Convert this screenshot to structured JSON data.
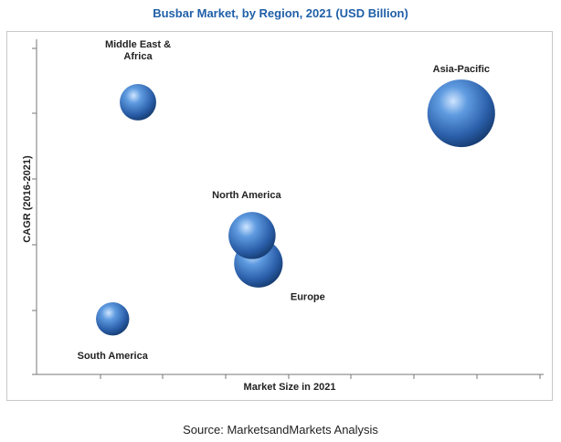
{
  "chart_data": {
    "type": "scatter",
    "subtype": "bubble",
    "title": "Busbar Market, by Region, 2021 (USD Billion)",
    "xlabel": "Market Size in 2021",
    "ylabel": "CAGR (2016-2021)",
    "xlim": [
      0,
      8
    ],
    "ylim": [
      0,
      6
    ],
    "grid": false,
    "legend": "none",
    "point_color": "#2f6fc0",
    "series": [
      {
        "points": [
          {
            "label": "Middle East &",
            "label2": "Africa",
            "x": 1.6,
            "y": 4.9,
            "size": 0.9
          },
          {
            "label": "Asia-Pacific",
            "x": 6.7,
            "y": 4.7,
            "size": 3.1
          },
          {
            "label": "North America",
            "x": 3.4,
            "y": 2.5,
            "size": 1.5
          },
          {
            "label": "Europe",
            "x": 3.5,
            "y": 2.0,
            "size": 1.6
          },
          {
            "label": "South America",
            "x": 1.2,
            "y": 1.0,
            "size": 0.75
          }
        ]
      }
    ]
  },
  "footer": {
    "source": "Source: MarketsandMarkets Analysis"
  }
}
